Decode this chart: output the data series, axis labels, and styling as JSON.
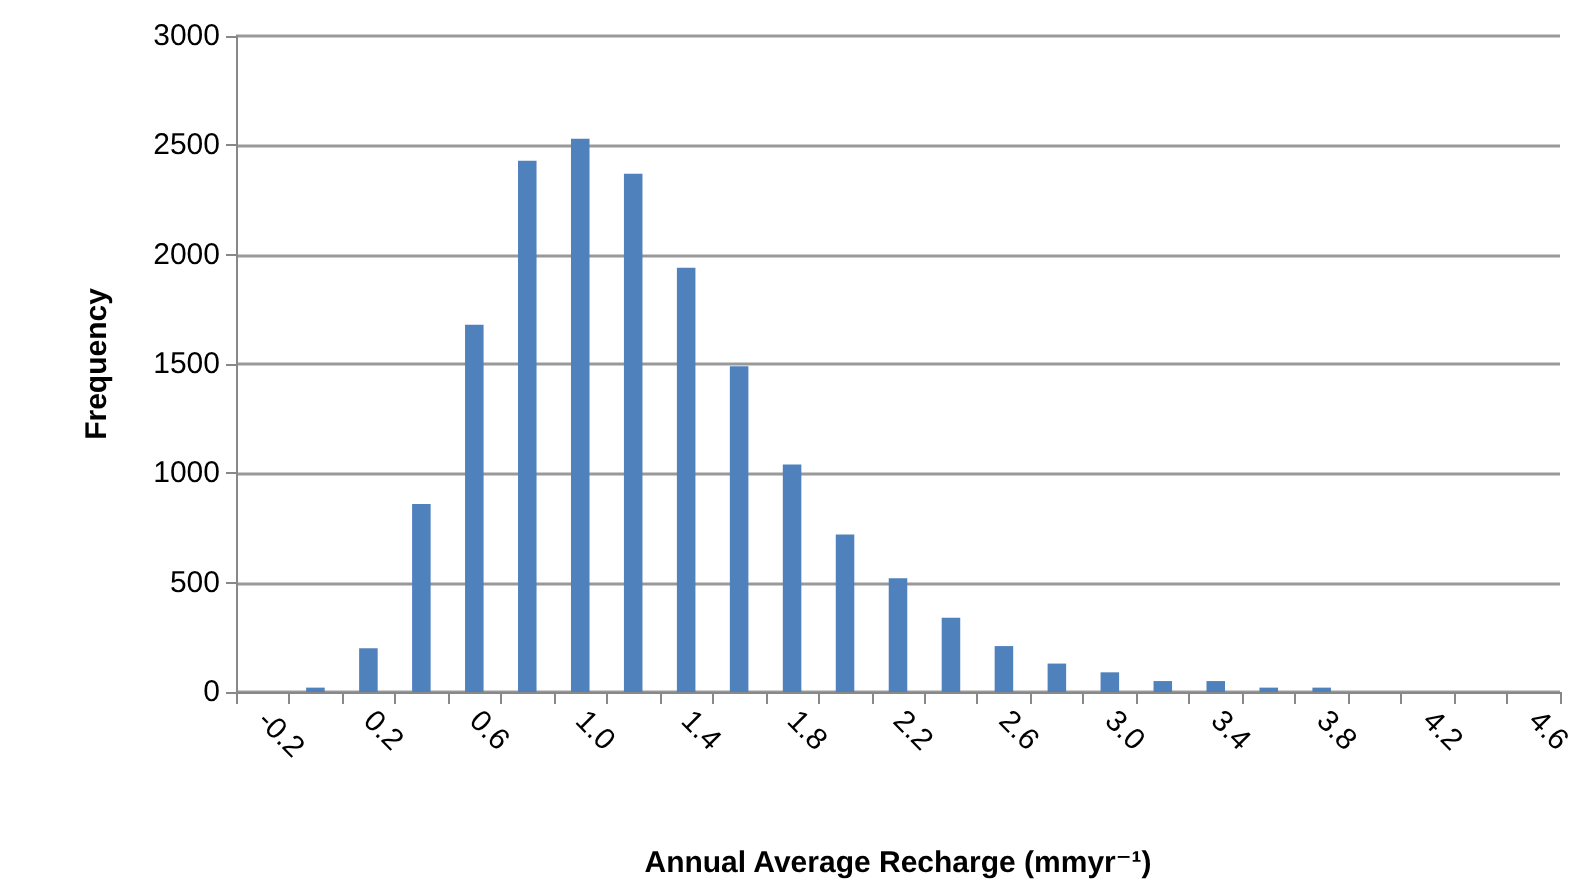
{
  "chart_data": {
    "type": "bar",
    "xlabel": "Annual Average Recharge (mmyr⁻¹)",
    "ylabel": "Frequency",
    "categories": [
      "-0.2",
      null,
      "0.2",
      null,
      "0.6",
      null,
      "1.0",
      null,
      "1.4",
      null,
      "1.8",
      null,
      "2.2",
      null,
      "2.6",
      null,
      "3.0",
      null,
      "3.4",
      null,
      "3.8",
      null,
      "4.2",
      null,
      "4.6"
    ],
    "values": [
      0,
      20,
      200,
      860,
      1680,
      2430,
      2530,
      2370,
      1940,
      1490,
      1040,
      720,
      520,
      340,
      210,
      130,
      90,
      50,
      50,
      20,
      20,
      0,
      0,
      0,
      0
    ],
    "color": "#4f81bd",
    "ylim": [
      0,
      3000
    ],
    "yticks": [
      0,
      500,
      1000,
      1500,
      2000,
      2500,
      3000
    ],
    "grid": "y"
  }
}
